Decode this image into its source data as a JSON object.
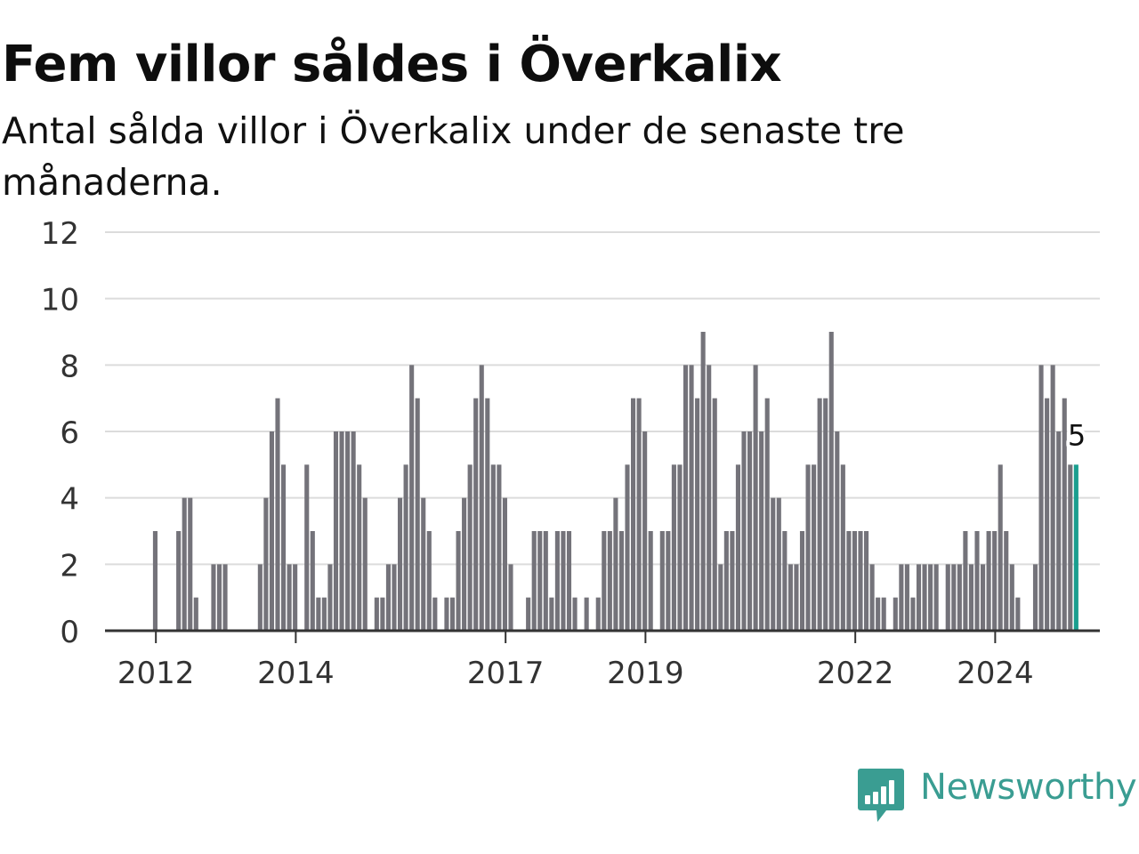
{
  "title": "Fem villor såldes i Överkalix",
  "subtitle": "Antal sålda villor i Överkalix under de senaste tre månaderna.",
  "brand": {
    "name": "Newsworthy",
    "icon": "newsworthy-logo-icon",
    "color": "#3a9d92"
  },
  "chart_data": {
    "type": "bar",
    "ylim": [
      0,
      12
    ],
    "yticks": [
      0,
      2,
      4,
      6,
      8,
      10,
      12
    ],
    "xticks": [
      {
        "label": "2012",
        "index": 8
      },
      {
        "label": "2014",
        "index": 32
      },
      {
        "label": "2017",
        "index": 68
      },
      {
        "label": "2019",
        "index": 92
      },
      {
        "label": "2022",
        "index": 128
      },
      {
        "label": "2024",
        "index": 152
      }
    ],
    "values": [
      0,
      0,
      0,
      0,
      0,
      0,
      0,
      0,
      3,
      0,
      0,
      0,
      3,
      4,
      4,
      1,
      0,
      0,
      2,
      2,
      2,
      0,
      0,
      0,
      0,
      0,
      2,
      4,
      6,
      7,
      5,
      2,
      2,
      0,
      5,
      3,
      1,
      1,
      2,
      6,
      6,
      6,
      6,
      5,
      4,
      0,
      1,
      1,
      2,
      2,
      4,
      5,
      8,
      7,
      4,
      3,
      1,
      0,
      1,
      1,
      3,
      4,
      5,
      7,
      8,
      7,
      5,
      5,
      4,
      2,
      0,
      0,
      1,
      3,
      3,
      3,
      1,
      3,
      3,
      3,
      1,
      0,
      1,
      0,
      1,
      3,
      3,
      4,
      3,
      5,
      7,
      7,
      6,
      3,
      0,
      3,
      3,
      5,
      5,
      8,
      8,
      7,
      9,
      8,
      7,
      2,
      3,
      3,
      5,
      6,
      6,
      8,
      6,
      7,
      4,
      4,
      3,
      2,
      2,
      3,
      5,
      5,
      7,
      7,
      9,
      6,
      5,
      3,
      3,
      3,
      3,
      2,
      1,
      1,
      0,
      1,
      2,
      2,
      1,
      2,
      2,
      2,
      2,
      0,
      2,
      2,
      2,
      3,
      2,
      3,
      2,
      3,
      3,
      5,
      3,
      2,
      1,
      0,
      0,
      2,
      8,
      7,
      8,
      6,
      7,
      5,
      5
    ],
    "highlight_index": 166,
    "highlight_label": "5",
    "colors": {
      "bar": "#74737a",
      "highlight": "#1a9e8f",
      "grid": "#dcdcdc",
      "axis": "#333333"
    }
  }
}
